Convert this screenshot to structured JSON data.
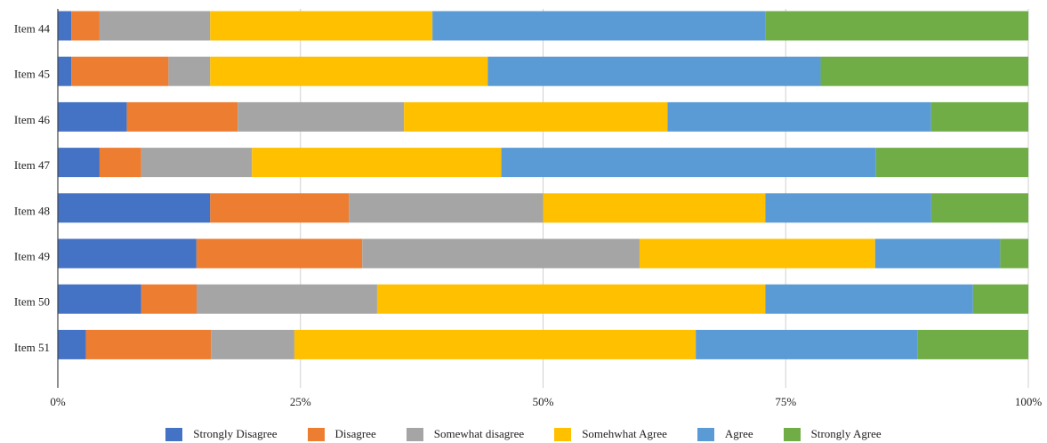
{
  "chart_data": {
    "type": "bar",
    "orientation": "horizontal",
    "stacked": true,
    "normalized": true,
    "categories": [
      "Item 44",
      "Item 45",
      "Item 46",
      "Item 47",
      "Item 48",
      "Item 49",
      "Item 50",
      "Item 51"
    ],
    "x_ticks": [
      "0%",
      "25%",
      "50%",
      "75%",
      "100%"
    ],
    "xlim": [
      0,
      100
    ],
    "grid": true,
    "legend_position": "bottom",
    "title": "",
    "xlabel": "",
    "ylabel": "",
    "series": [
      {
        "name": "Strongly Disagree",
        "color": "#4472C4",
        "values": [
          1.4,
          1.4,
          7.1,
          4.3,
          15.7,
          14.3,
          8.6,
          2.9
        ]
      },
      {
        "name": "Disagree",
        "color": "#ED7D31",
        "values": [
          2.9,
          10.0,
          11.4,
          4.3,
          14.3,
          17.1,
          5.7,
          12.9
        ]
      },
      {
        "name": "Somewhat disagree",
        "color": "#A5A5A5",
        "values": [
          11.4,
          4.3,
          17.1,
          11.4,
          20.0,
          28.6,
          18.6,
          8.6
        ]
      },
      {
        "name": "Somehwhat Agree",
        "color": "#FFC000",
        "values": [
          22.9,
          28.6,
          27.1,
          25.7,
          22.9,
          24.3,
          40.0,
          41.4
        ]
      },
      {
        "name": "Agree",
        "color": "#5B9BD5",
        "values": [
          34.3,
          34.3,
          27.1,
          38.6,
          17.1,
          12.9,
          21.4,
          22.9
        ]
      },
      {
        "name": "Strongly Agree",
        "color": "#70AD47",
        "values": [
          27.1,
          21.4,
          10.0,
          15.7,
          10.0,
          2.9,
          5.7,
          11.4
        ]
      }
    ]
  }
}
